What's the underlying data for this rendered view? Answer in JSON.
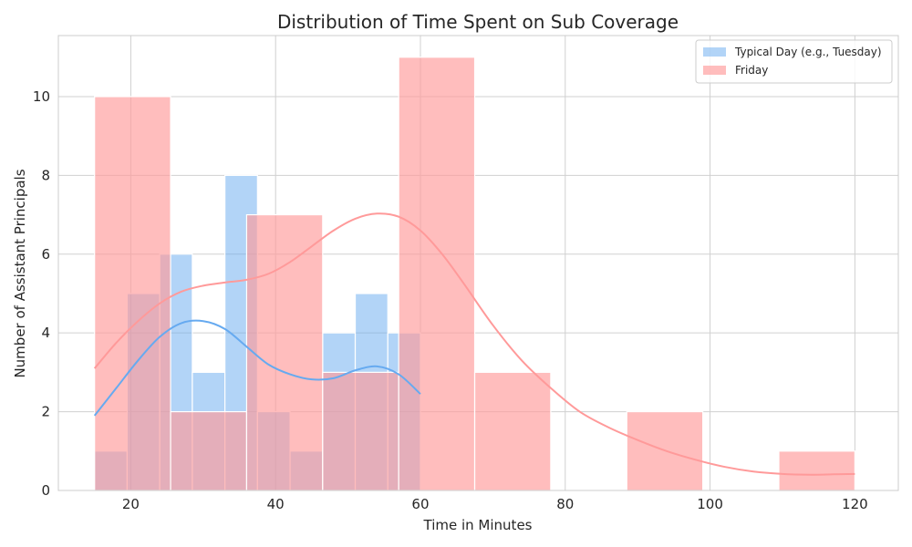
{
  "chart_data": {
    "type": "histogram",
    "title": "Distribution of Time Spent on Sub Coverage",
    "xlabel": "Time in Minutes",
    "ylabel": "Number of Assistant Principals",
    "xlim": [
      10,
      126
    ],
    "ylim": [
      0,
      11.55
    ],
    "xticks": [
      20,
      40,
      60,
      80,
      100,
      120
    ],
    "yticks": [
      0,
      2,
      4,
      6,
      8,
      10
    ],
    "grid": true,
    "legend_position": "top-right",
    "series": [
      {
        "name": "Typical Day (e.g., Tuesday)",
        "color": "#66aaf0",
        "fill_opacity": 0.5,
        "bins": [
          {
            "x0": 15,
            "x1": 19.5,
            "count": 1
          },
          {
            "x0": 19.5,
            "x1": 24,
            "count": 5
          },
          {
            "x0": 24,
            "x1": 28.5,
            "count": 6
          },
          {
            "x0": 28.5,
            "x1": 33,
            "count": 3
          },
          {
            "x0": 33,
            "x1": 37.5,
            "count": 8
          },
          {
            "x0": 37.5,
            "x1": 42,
            "count": 2
          },
          {
            "x0": 42,
            "x1": 46.5,
            "count": 1
          },
          {
            "x0": 46.5,
            "x1": 51,
            "count": 4
          },
          {
            "x0": 51,
            "x1": 55.5,
            "count": 5
          },
          {
            "x0": 55.5,
            "x1": 60,
            "count": 4
          }
        ],
        "kde": [
          [
            15,
            1.9
          ],
          [
            18,
            2.6
          ],
          [
            21,
            3.3
          ],
          [
            24,
            3.9
          ],
          [
            27,
            4.25
          ],
          [
            30,
            4.3
          ],
          [
            33,
            4.1
          ],
          [
            36,
            3.65
          ],
          [
            39,
            3.2
          ],
          [
            42,
            2.95
          ],
          [
            45,
            2.82
          ],
          [
            48,
            2.85
          ],
          [
            51,
            3.05
          ],
          [
            54,
            3.15
          ],
          [
            57,
            2.95
          ],
          [
            60,
            2.45
          ]
        ]
      },
      {
        "name": "Friday",
        "color": "#ff9a9a",
        "fill_opacity": 0.65,
        "bins": [
          {
            "x0": 15,
            "x1": 25.5,
            "count": 10
          },
          {
            "x0": 25.5,
            "x1": 36,
            "count": 2
          },
          {
            "x0": 36,
            "x1": 46.5,
            "count": 7
          },
          {
            "x0": 46.5,
            "x1": 57,
            "count": 3
          },
          {
            "x0": 57,
            "x1": 67.5,
            "count": 11
          },
          {
            "x0": 67.5,
            "x1": 78,
            "count": 3
          },
          {
            "x0": 78,
            "x1": 88.5,
            "count": 0
          },
          {
            "x0": 88.5,
            "x1": 99,
            "count": 2
          },
          {
            "x0": 99,
            "x1": 109.5,
            "count": 0
          },
          {
            "x0": 109.5,
            "x1": 120,
            "count": 1
          }
        ],
        "kde": [
          [
            15,
            3.1
          ],
          [
            18,
            3.75
          ],
          [
            21,
            4.3
          ],
          [
            24,
            4.75
          ],
          [
            27,
            5.05
          ],
          [
            30,
            5.2
          ],
          [
            33,
            5.28
          ],
          [
            36,
            5.35
          ],
          [
            39,
            5.5
          ],
          [
            42,
            5.8
          ],
          [
            45,
            6.2
          ],
          [
            48,
            6.6
          ],
          [
            51,
            6.9
          ],
          [
            54,
            7.03
          ],
          [
            57,
            6.95
          ],
          [
            60,
            6.6
          ],
          [
            63,
            6.0
          ],
          [
            66,
            5.25
          ],
          [
            70,
            4.2
          ],
          [
            74,
            3.3
          ],
          [
            78,
            2.6
          ],
          [
            82,
            2.0
          ],
          [
            86,
            1.6
          ],
          [
            90,
            1.28
          ],
          [
            94,
            1.0
          ],
          [
            98,
            0.78
          ],
          [
            102,
            0.6
          ],
          [
            106,
            0.48
          ],
          [
            110,
            0.42
          ],
          [
            114,
            0.4
          ],
          [
            117,
            0.41
          ],
          [
            120,
            0.42
          ]
        ]
      }
    ]
  }
}
